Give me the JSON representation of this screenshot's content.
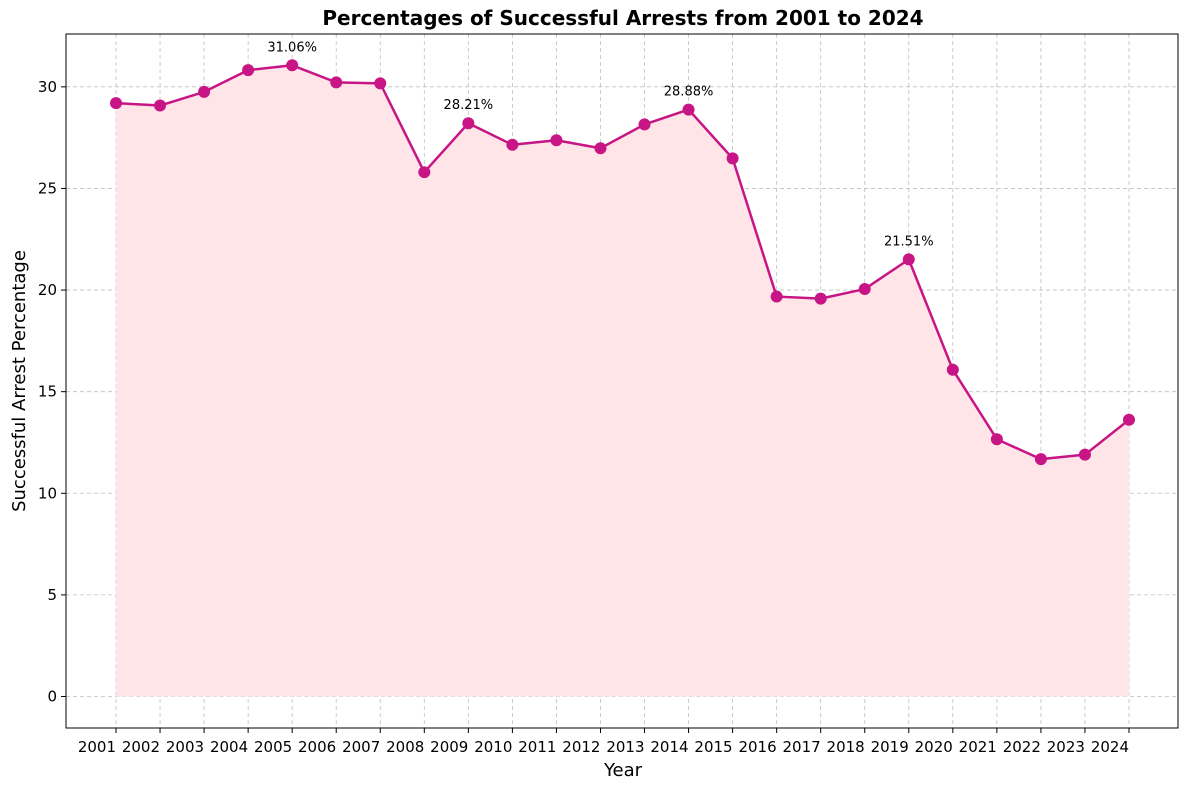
{
  "chart_data": {
    "type": "line",
    "title": "Percentages of Successful Arrests from 2001 to 2024",
    "xlabel": "Year",
    "ylabel": "Successful Arrest Percentage",
    "x": [
      "2001",
      "2002",
      "2003",
      "2004",
      "2005",
      "2006",
      "2007",
      "2008",
      "2009",
      "2010",
      "2011",
      "2012",
      "2013",
      "2014",
      "2015",
      "2016",
      "2017",
      "2018",
      "2019",
      "2020",
      "2021",
      "2022",
      "2023",
      "2024"
    ],
    "x_tick_labels": [
      "2001",
      "2002",
      "2003",
      "2004",
      "2005",
      "2006",
      "2007",
      "2008",
      "2009",
      "2010",
      "2011",
      "2012",
      "2013",
      "2014",
      "2015",
      "2016",
      "2017",
      "2018",
      "2019",
      "2020",
      "2021",
      "2022",
      "2023",
      "2024"
    ],
    "series": [
      {
        "values": [
          29.2,
          29.08,
          29.75,
          30.82,
          31.06,
          30.22,
          30.17,
          25.8,
          28.21,
          27.15,
          27.37,
          26.98,
          28.15,
          28.88,
          26.48,
          19.68,
          19.58,
          20.05,
          21.51,
          16.08,
          12.66,
          11.68,
          11.9,
          13.62
        ],
        "line_color": "#c71585",
        "fill_color": "#ffe4e8"
      }
    ],
    "ylim": [
      -1.55,
      32.6
    ],
    "y_ticks": [
      0,
      5,
      10,
      15,
      20,
      25,
      30
    ],
    "y_tick_labels": [
      "0",
      "5",
      "10",
      "15",
      "20",
      "25",
      "30"
    ],
    "grid": true,
    "annotations": [
      {
        "x": "2005",
        "text": "31.06%"
      },
      {
        "x": "2009",
        "text": "28.21%"
      },
      {
        "x": "2014",
        "text": "28.88%"
      },
      {
        "x": "2019",
        "text": "21.51%"
      }
    ]
  }
}
